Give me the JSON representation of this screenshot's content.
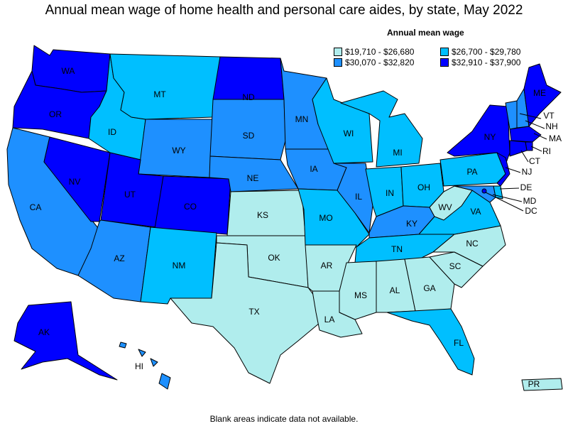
{
  "title": "Annual mean wage of home health and personal care aides, by state, May 2022",
  "legend": {
    "title": "Annual mean wage",
    "items": [
      {
        "range": "$19,710 - $26,680",
        "color": "#b0eded"
      },
      {
        "range": "$26,700 - $29,780",
        "color": "#00bfff"
      },
      {
        "range": "$30,070 - $32,820",
        "color": "#1e90ff"
      },
      {
        "range": "$32,910 - $37,900",
        "color": "#0000ff"
      }
    ]
  },
  "footnote": "Blank areas indicate data not available.",
  "states": {
    "WA": 3,
    "OR": 3,
    "CA": 2,
    "NV": 3,
    "ID": 1,
    "MT": 1,
    "WY": 2,
    "UT": 3,
    "CO": 3,
    "AZ": 2,
    "NM": 1,
    "ND": 3,
    "SD": 2,
    "NE": 2,
    "KS": 0,
    "OK": 0,
    "TX": 0,
    "MN": 2,
    "IA": 2,
    "MO": 1,
    "AR": 0,
    "LA": 0,
    "WI": 1,
    "IL": 2,
    "MI": 1,
    "IN": 1,
    "OH": 1,
    "KY": 2,
    "TN": 1,
    "MS": 0,
    "AL": 0,
    "GA": 0,
    "FL": 1,
    "SC": 0,
    "NC": 0,
    "VA": 1,
    "WV": 0,
    "PA": 1,
    "NY": 3,
    "ME": 3,
    "VT": 2,
    "NH": 2,
    "MA": 3,
    "RI": 3,
    "CT": 3,
    "NJ": 3,
    "DE": 1,
    "MD": 2,
    "DC": 3,
    "AK": 3,
    "HI": 2,
    "PR": 0
  },
  "labels": {
    "WA": "WA",
    "OR": "OR",
    "CA": "CA",
    "NV": "NV",
    "ID": "ID",
    "MT": "MT",
    "WY": "WY",
    "UT": "UT",
    "CO": "CO",
    "AZ": "AZ",
    "NM": "NM",
    "ND": "ND",
    "SD": "SD",
    "NE": "NE",
    "KS": "KS",
    "OK": "OK",
    "TX": "TX",
    "MN": "MN",
    "IA": "IA",
    "MO": "MO",
    "AR": "AR",
    "LA": "LA",
    "WI": "WI",
    "IL": "IL",
    "MI": "MI",
    "IN": "IN",
    "OH": "OH",
    "KY": "KY",
    "TN": "TN",
    "MS": "MS",
    "AL": "AL",
    "GA": "GA",
    "FL": "FL",
    "SC": "SC",
    "NC": "NC",
    "VA": "VA",
    "WV": "WV",
    "PA": "PA",
    "NY": "NY",
    "ME": "ME",
    "VT": "VT",
    "NH": "NH",
    "MA": "MA",
    "RI": "RI",
    "CT": "CT",
    "NJ": "NJ",
    "DE": "DE",
    "MD": "MD",
    "DC": "DC",
    "AK": "AK",
    "HI": "HI",
    "PR": "PR"
  }
}
